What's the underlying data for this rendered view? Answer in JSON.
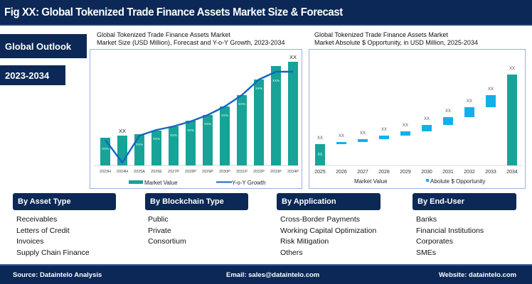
{
  "header": {
    "title": "Fig XX: Global Tokenized Trade Finance Assets Market Size & Forecast"
  },
  "tags": {
    "outlook": "Global Outlook",
    "years": "2023-2034"
  },
  "colors": {
    "navy": "#0b2856",
    "teal": "#17a398",
    "line_blue": "#1565c0",
    "opportunity_blue": "#12b0ea"
  },
  "chart_data": [
    {
      "type": "bar+line",
      "title": "Global Tokenized Trade Finance Assets Market",
      "subtitle": "Market Size (USD Million), Forecast and Y-o-Y Growth, 2023-2034",
      "categories": [
        "2023H",
        "2024H",
        "2025A",
        "2026E",
        "2027P",
        "2028P",
        "2029P",
        "2030P",
        "2031P",
        "2032P",
        "2033P",
        "2034P"
      ],
      "series": [
        {
          "name": "Market Value",
          "kind": "bar",
          "values": [
            39,
            42,
            44,
            49,
            55,
            63,
            71,
            83,
            99,
            121,
            140,
            146
          ],
          "value_labels": [
            "",
            "XX",
            "",
            "",
            "",
            "",
            "",
            "",
            "",
            "",
            "",
            "XX"
          ]
        },
        {
          "name": "Y-o-Y Growth",
          "kind": "line",
          "values": [
            36,
            4,
            42,
            50,
            55,
            62,
            71,
            83,
            99,
            121,
            132,
            132
          ],
          "data_labels": [
            "XX%",
            "",
            "XX%",
            "XX%",
            "XX%",
            "XX%",
            "XX%",
            "XX%",
            "XX%",
            "XX%",
            "XX%",
            ""
          ]
        }
      ],
      "legend": [
        "Market Value",
        "Y-o-Y Growth"
      ],
      "legend_position": "bottom",
      "grid": false,
      "note": "Values are relative pixel heights; actual numbers masked as XX"
    },
    {
      "type": "waterfall",
      "title": "Global Tokenized Trade Finance Assets Market",
      "subtitle": "Market Absolute $ Opportunity, in USD Million, 2025-2034",
      "categories": [
        "2025",
        "2026",
        "2027",
        "2028",
        "2029",
        "2030",
        "2031",
        "2032",
        "2033",
        "2034"
      ],
      "series": [
        {
          "name": "Market Value",
          "kind": "bar",
          "values": [
            30,
            null,
            null,
            null,
            null,
            null,
            null,
            null,
            null,
            128
          ]
        },
        {
          "name": "Abolute $ Opportunity",
          "kind": "floating",
          "ranges": [
            [
              0,
              0
            ],
            [
              30,
              33
            ],
            [
              33,
              37
            ],
            [
              37,
              42
            ],
            [
              42,
              48
            ],
            [
              48,
              57
            ],
            [
              57,
              68
            ],
            [
              68,
              82
            ],
            [
              82,
              99
            ],
            [
              99,
              128
            ]
          ]
        }
      ],
      "value_labels": [
        "XX",
        "XX",
        "XX",
        "XX",
        "XX",
        "XX",
        "XX",
        "XX",
        "XX",
        "XX"
      ],
      "inner_label_2025": "XX",
      "legend": [
        "Market Value",
        "Abolute $ Opportunity"
      ],
      "legend_position": "bottom",
      "grid": false
    }
  ],
  "left_chart": {
    "title_line1": "Global Tokenized Trade Finance Assets Market",
    "title_line2": "Market Size (USD Million), Forecast and Y-o-Y Growth, 2023-2034",
    "x_labels": [
      "2023H",
      "2024H",
      "2025A",
      "2026E",
      "2027P",
      "2028P",
      "2029P",
      "2030P",
      "2031P",
      "2032P",
      "2033P",
      "2034P"
    ],
    "bar_tops": [
      193,
      190,
      188,
      183,
      177,
      169,
      161,
      149,
      133,
      111,
      92,
      86
    ],
    "line_y": [
      196,
      228,
      190,
      182,
      177,
      170,
      161,
      149,
      133,
      111,
      100,
      100
    ],
    "pct_label": "XX%",
    "xx_label": "XX",
    "legend_market": "Market Value",
    "legend_growth": "Y-o-Y Growth"
  },
  "right_chart": {
    "title_line1": "Global Tokenized Trade Finance Assets Market",
    "title_line2": "Market Absolute $ Opportunity, in USD Million, 2025-2034",
    "x_labels": [
      "2025",
      "2026",
      "2027",
      "2028",
      "2029",
      "2030",
      "2031",
      "2032",
      "2033",
      "2034"
    ],
    "xx_label": "XX",
    "legend_market": "Market Value",
    "legend_opportunity": "Abolute $ Opportunity"
  },
  "segments": [
    {
      "title": "By Asset Type",
      "items": [
        "Receivables",
        "Letters of Credit",
        "Invoices",
        "Supply Chain Finance"
      ]
    },
    {
      "title": "By Blockchain Type",
      "items": [
        "Public",
        "Private",
        "Consortium"
      ]
    },
    {
      "title": "By Application",
      "items": [
        "Cross-Border Payments",
        "Working Capital Optimization",
        "Risk Mitigation",
        "Others"
      ]
    },
    {
      "title": "By End-User",
      "items": [
        "Banks",
        "Financial Institutions",
        "Corporates",
        "SMEs"
      ]
    }
  ],
  "footer": {
    "source": "Source: Dataintelo  Analysis",
    "email": "Email: sales@dataintelo.com",
    "website": "Website: dataintelo.com"
  }
}
